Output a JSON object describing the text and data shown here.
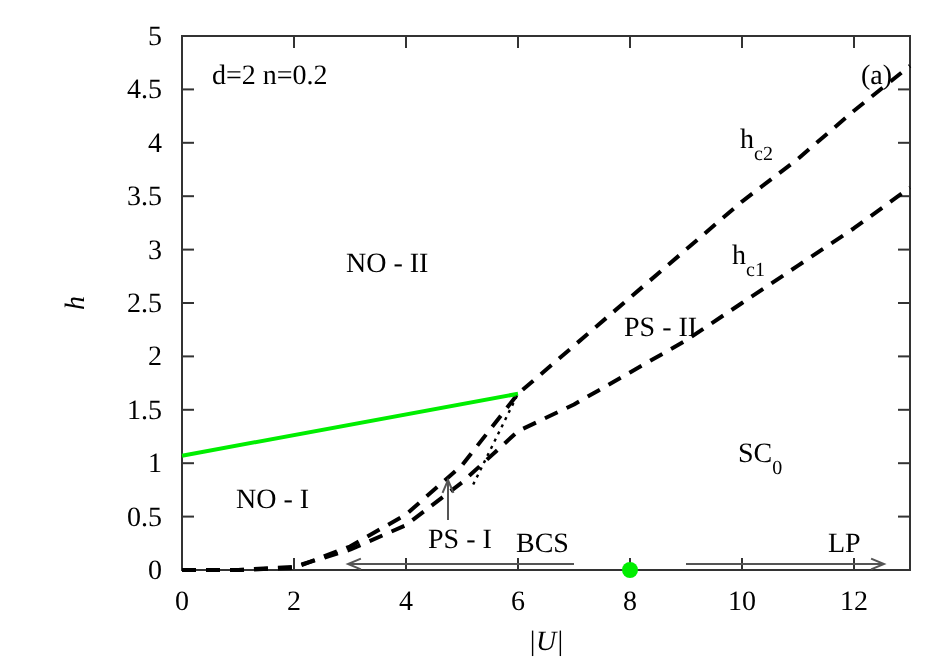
{
  "chart_data": {
    "type": "line",
    "xlabel": "|U|",
    "ylabel": "h",
    "xlim": [
      0,
      13
    ],
    "xticks": [
      0,
      2,
      4,
      6,
      8,
      10,
      12
    ],
    "ylim": [
      0,
      5
    ],
    "yticks": [
      0,
      0.5,
      1,
      1.5,
      2,
      2.5,
      3,
      3.5,
      4,
      4.5,
      5
    ],
    "grid": false,
    "marker": "none",
    "series": [
      {
        "name": "h$_{c2}$",
        "color": "#000000",
        "line_style": "dashed",
        "x": [
          0,
          1,
          2,
          3,
          4,
          5,
          6,
          7,
          8,
          9,
          10,
          11,
          12,
          13
        ],
        "values": [
          0,
          0,
          0.02,
          0.22,
          0.52,
          0.98,
          1.65,
          2.1,
          2.55,
          3.0,
          3.45,
          3.85,
          4.3,
          4.72
        ]
      },
      {
        "name": "h$_{c1}$",
        "color": "#000000",
        "line_style": "dashed",
        "x": [
          0,
          1,
          2,
          3,
          4,
          5,
          6,
          7,
          8,
          9,
          10,
          11,
          12,
          13
        ],
        "values": [
          0,
          0,
          0.03,
          0.19,
          0.42,
          0.82,
          1.3,
          1.55,
          1.85,
          2.15,
          2.5,
          2.85,
          3.2,
          3.58
        ]
      },
      {
        "color": "#00ee00",
        "line_style": "solid",
        "x": [
          0,
          6
        ],
        "values": [
          1.07,
          1.65
        ]
      },
      {
        "color": "#000000",
        "line_style": "dotted",
        "x": [
          5.2,
          6
        ],
        "values": [
          0.8,
          1.65
        ]
      },
      {
        "type": "scatter",
        "marker": "circle",
        "color": "#00ee00",
        "x": [
          8
        ],
        "values": [
          0
        ]
      }
    ],
    "annotations": [
      "d=2 n=0.2",
      "(a)",
      "NO - II",
      "NO - I",
      "PS - II",
      "PS - I",
      "SC$_{0}$",
      "BCS",
      "LP"
    ]
  }
}
